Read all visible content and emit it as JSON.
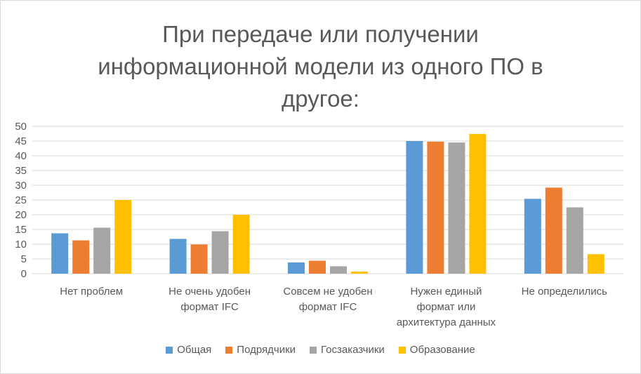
{
  "chart_data": {
    "type": "bar",
    "title": "При передаче или получении\nинформационной модели из одного ПО в\nдругое:",
    "categories": [
      [
        "Нет проблем"
      ],
      [
        "Не очень удобен",
        "формат IFC"
      ],
      [
        "Совсем не удобен",
        "формат IFC"
      ],
      [
        "Нужен единый",
        "формат или",
        "архитектура данных"
      ],
      [
        "Не определились"
      ]
    ],
    "series": [
      {
        "name": "Общая",
        "color": "#5b9bd5",
        "values": [
          13.7,
          11.8,
          3.8,
          45,
          25.4
        ]
      },
      {
        "name": "Подрядчики",
        "color": "#ed7d31",
        "values": [
          11.3,
          9.9,
          4.4,
          44.8,
          29.2
        ]
      },
      {
        "name": "Госзаказчики",
        "color": "#a5a5a5",
        "values": [
          15.6,
          14.4,
          2.5,
          44.5,
          22.5
        ]
      },
      {
        "name": "Образование",
        "color": "#ffc000",
        "values": [
          25,
          20,
          0.7,
          47.4,
          6.6
        ]
      }
    ],
    "ylim": [
      0,
      50
    ],
    "yticks": [
      0,
      5,
      10,
      15,
      20,
      25,
      30,
      35,
      40,
      45,
      50
    ],
    "grid": true,
    "legend_position": "bottom"
  }
}
